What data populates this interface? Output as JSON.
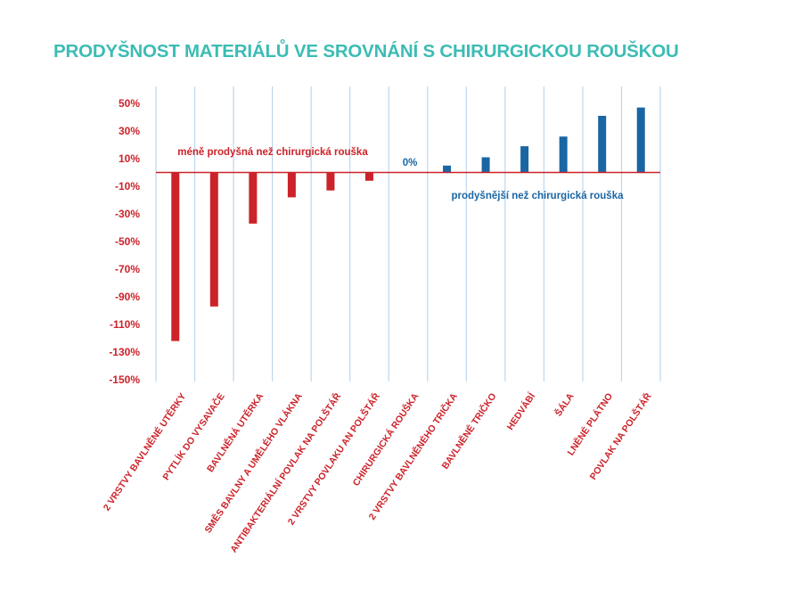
{
  "chart_data": {
    "type": "bar",
    "title": "PRODYŠNOST MATERIÁLŮ VE SROVNÁNÍ S CHIRURGICKOU ROUŠKOU",
    "categories": [
      "2 VRSTVY BAVLNĚNÉ UTĚRKY",
      "PYTLÍK DO VYSAVAČE",
      "BAVLNĚNÁ UTĚRKA",
      "SMĚS BAVLNY A UMĚLÉHO VLÁKNA",
      "ANTIBAKTERIÁLNÍ POVLAK NA POLŠTÁŘ",
      "2 VRSTVY POVLAKU AN POLŠTÁŘ",
      "CHIRURGICKÁ ROUŠKA",
      "2 VRSTVY BAVLNĚNÉHO TRIČKA",
      "BAVLNĚNÉ TRIČKO",
      "HEDVÁBÍ",
      "ŠÁLA",
      "LNĚNÉ PLÁTNO",
      "POVLAK NA POLŠTÁŘ"
    ],
    "values": [
      -122,
      -97,
      -37,
      -18,
      -13,
      -6,
      0,
      5,
      11,
      19,
      26,
      41,
      47
    ],
    "ylim": [
      -150,
      50
    ],
    "yticks": [
      50,
      30,
      10,
      -10,
      -30,
      -50,
      -70,
      -90,
      -110,
      -130,
      -150
    ],
    "ytick_labels": [
      "50%",
      "30%",
      "10%",
      "-10%",
      "-30%",
      "-50%",
      "-70%",
      "-90%",
      "-110%",
      "-130%",
      "-150%"
    ],
    "grid": "vertical",
    "annotations": {
      "negative": "méně prodyšná než chirurgická rouška",
      "zero": "0%",
      "positive": "prodyšnější než chirurgická rouška"
    },
    "colors": {
      "title": "#3cbcb4",
      "negative": "#cc2229",
      "positive": "#1a66a3",
      "grid": "#bcd7ee",
      "zero_line": "#cc2229"
    }
  }
}
